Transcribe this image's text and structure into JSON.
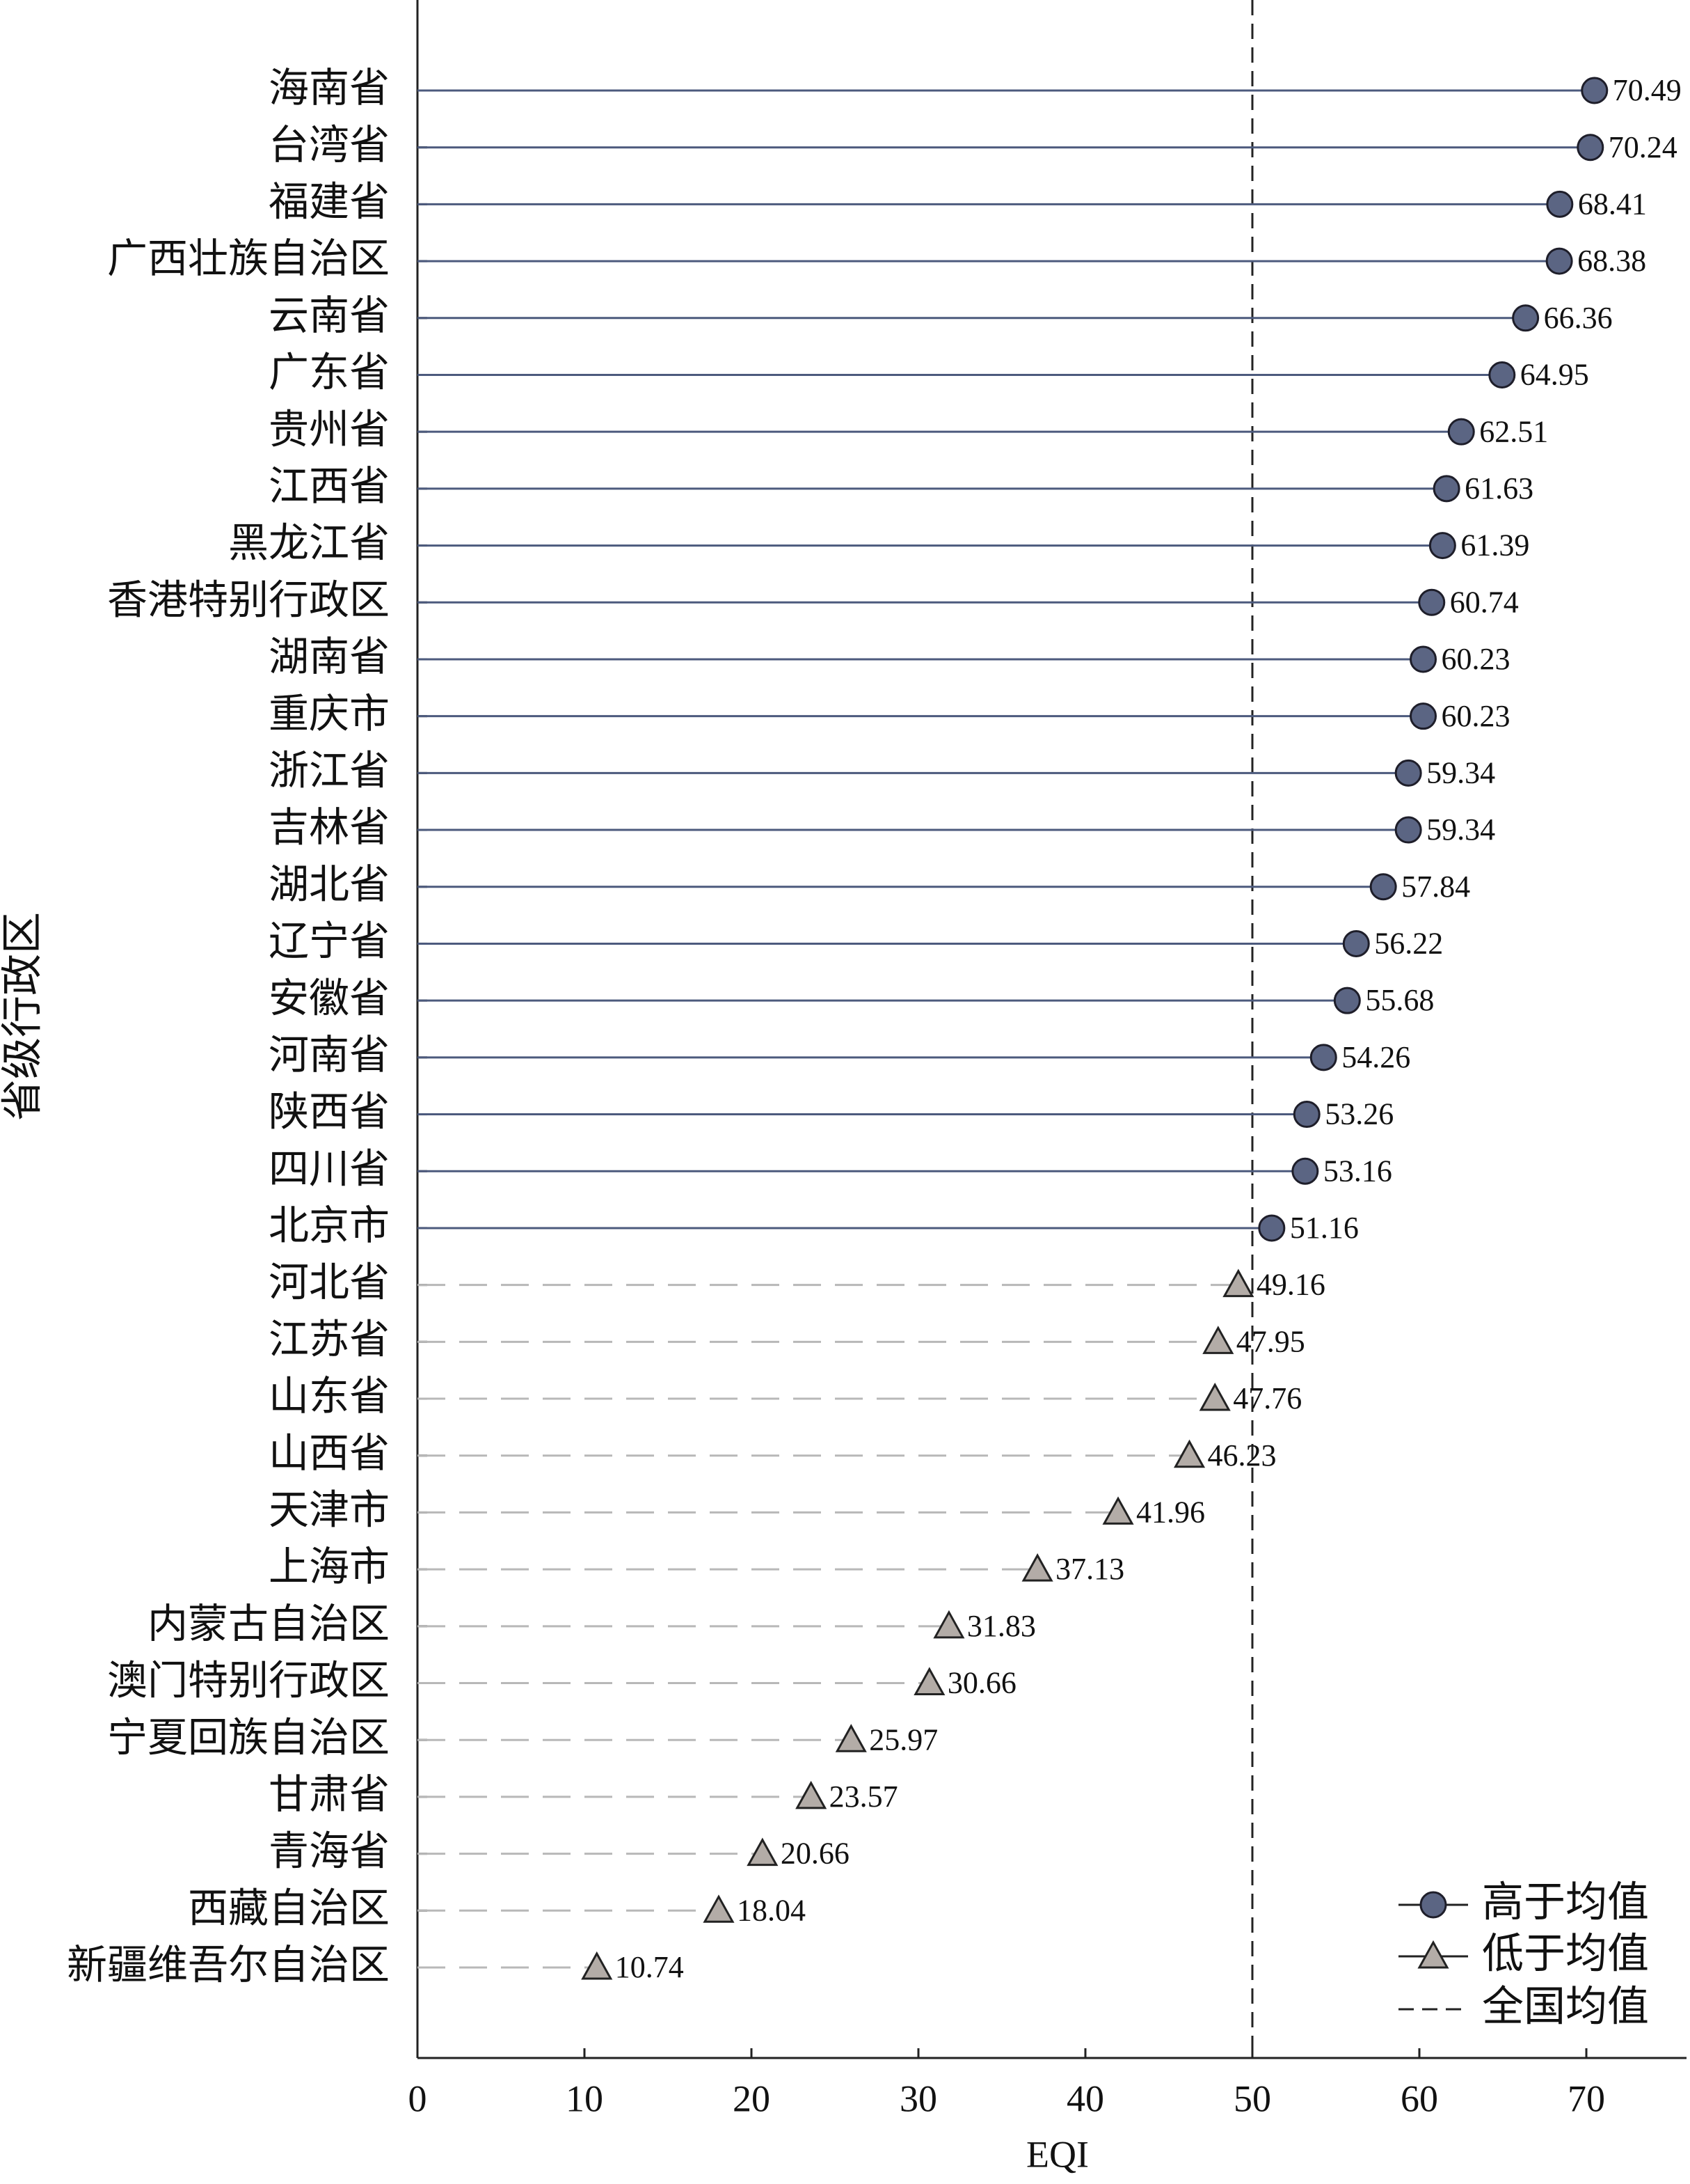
{
  "chart_data": {
    "type": "lollipop",
    "orientation": "horizontal",
    "x_label": "EQI",
    "y_label": "省级行政区",
    "categories": [
      "海南省",
      "台湾省",
      "福建省",
      "广西壮族自治区",
      "云南省",
      "广东省",
      "贵州省",
      "江西省",
      "黑龙江省",
      "香港特别行政区",
      "湖南省",
      "重庆市",
      "浙江省",
      "吉林省",
      "湖北省",
      "辽宁省",
      "安徽省",
      "河南省",
      "陕西省",
      "四川省",
      "北京市",
      "河北省",
      "江苏省",
      "山东省",
      "山西省",
      "天津市",
      "上海市",
      "内蒙古自治区",
      "澳门特别行政区",
      "宁夏回族自治区",
      "甘肃省",
      "青海省",
      "西藏自治区",
      "新疆维吾尔自治区"
    ],
    "series": [
      {
        "name": "高于均值",
        "marker": "circle",
        "color": "#5b6583",
        "stem_color": "#4c5a7d",
        "stem_style": "solid",
        "values": [
          70.49,
          70.24,
          68.41,
          68.38,
          66.36,
          64.95,
          62.51,
          61.63,
          61.39,
          60.74,
          60.23,
          60.23,
          59.34,
          59.34,
          57.84,
          56.22,
          55.68,
          54.26,
          53.26,
          53.16,
          51.16,
          null,
          null,
          null,
          null,
          null,
          null,
          null,
          null,
          null,
          null,
          null,
          null,
          null
        ]
      },
      {
        "name": "低于均值",
        "marker": "triangle",
        "color": "#b3aca7",
        "stem_color": "#b8b8b8",
        "stem_style": "dashed",
        "values": [
          null,
          null,
          null,
          null,
          null,
          null,
          null,
          null,
          null,
          null,
          null,
          null,
          null,
          null,
          null,
          null,
          null,
          null,
          null,
          null,
          null,
          49.16,
          47.95,
          47.76,
          46.23,
          41.96,
          37.13,
          31.83,
          30.66,
          25.97,
          23.57,
          20.66,
          18.04,
          10.74
        ]
      }
    ],
    "mean_line": {
      "name": "全国均值",
      "value": 50,
      "color": "#222222"
    },
    "xlim": [
      0,
      76
    ],
    "xticks": [
      0,
      10,
      20,
      30,
      40,
      50,
      60,
      70
    ],
    "legend": "lower right"
  }
}
